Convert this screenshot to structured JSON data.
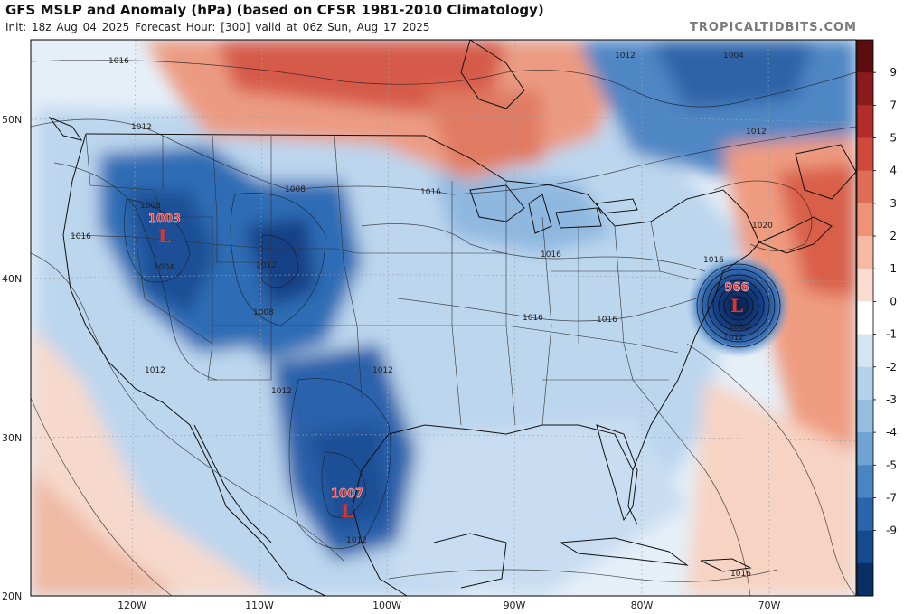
{
  "header": {
    "title": "GFS MSLP and Anomaly (hPa) (based on CFSR 1981-2010 Climatology)",
    "init": "Init: 18z Aug 04 2025",
    "forecast_hour": "Forecast Hour: [300]",
    "valid": "valid at 06z Sun, Aug 17 2025",
    "brand": "TROPICALTIDBITS.COM"
  },
  "map": {
    "lat_labels": [
      "50N",
      "40N",
      "30N",
      "20N"
    ],
    "lon_labels": [
      "120W",
      "110W",
      "100W",
      "90W",
      "80W",
      "70W"
    ],
    "lows": [
      {
        "name": "low-pacific-northwest",
        "value": "1003",
        "symbol": "L"
      },
      {
        "name": "low-mexico",
        "value": "1007",
        "symbol": "L"
      },
      {
        "name": "low-atlantic",
        "value": "966",
        "symbol": "L"
      }
    ],
    "isobar_labels": [
      "1016",
      "1012",
      "1008",
      "1004",
      "1008",
      "1008",
      "1012",
      "1012",
      "1016",
      "1016",
      "1016",
      "1016",
      "1012",
      "1012",
      "1004",
      "1012",
      "1020",
      "1016",
      "1016",
      "1012",
      "1008",
      "1012",
      "1016",
      "1012"
    ],
    "colors": {
      "strong_positive": "#c0392b",
      "positive": "#e8866a",
      "neutral": "#f4f7fb",
      "negative": "#9fc3e4",
      "strong_negative": "#1f5aa6",
      "low_symbol": "#e8302a"
    }
  },
  "colorbar": {
    "labels": [
      "9",
      "7",
      "5",
      "4",
      "3",
      "2",
      "1",
      "0",
      "-1",
      "-2",
      "-3",
      "-4",
      "-5",
      "-7",
      "-9"
    ],
    "colors": [
      "#5c0d10",
      "#8b1a1c",
      "#b32d2a",
      "#cf4a3a",
      "#e06d55",
      "#ee9378",
      "#f6b9a3",
      "#fbdcd0",
      "#ffffff",
      "#d3e4f3",
      "#b4d2ec",
      "#95bee3",
      "#6fa3d5",
      "#4a85c3",
      "#2a65ad",
      "#164a8f",
      "#0a2f66"
    ]
  }
}
